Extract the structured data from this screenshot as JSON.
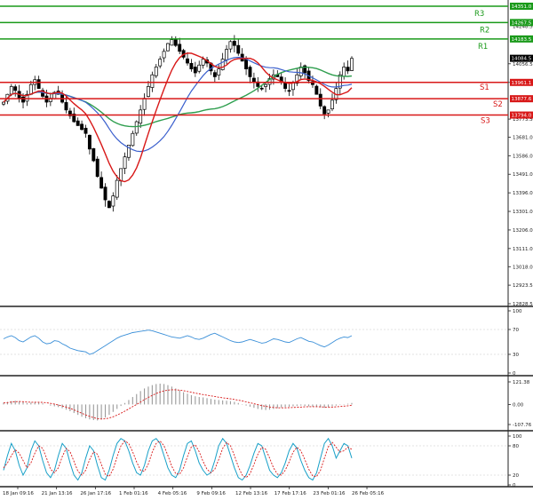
{
  "chart_data": {
    "type": "line",
    "main_panel": {
      "y_axis_ticks": [
        "14056.5",
        "13961.1",
        "13773.5",
        "13681.0",
        "13586.0",
        "13491.0",
        "13396.0",
        "13301.0",
        "13206.0",
        "13111.0",
        "13018.0",
        "12923.5",
        "12828.5"
      ],
      "y_range": [
        12828.5,
        14351.0
      ],
      "current_price": "14084.5",
      "levels": [
        {
          "label": "R3",
          "price": "14351.0",
          "value": 14351.0,
          "color": "#1a9a1a"
        },
        {
          "label": "R2",
          "price": "14267.5",
          "value": 14267.5,
          "color": "#1a9a1a"
        },
        {
          "label": "R1",
          "price": "14183.5",
          "value": 14183.5,
          "color": "#1a9a1a"
        },
        {
          "label": "S1",
          "price": "13961.1",
          "value": 13961.1,
          "color": "#d81818"
        },
        {
          "label": "S2",
          "price": "13877.6",
          "value": 13877.6,
          "color": "#d81818"
        },
        {
          "label": "S3",
          "price": "13794.0",
          "value": 13794.0,
          "color": "#d81818"
        }
      ],
      "extra_tick": "14248.5",
      "close": [
        13860,
        13900,
        13940,
        13920,
        13880,
        13860,
        13900,
        13950,
        13975,
        13930,
        13890,
        13860,
        13880,
        13910,
        13900,
        13860,
        13820,
        13790,
        13760,
        13740,
        13720,
        13700,
        13620,
        13560,
        13480,
        13420,
        13360,
        13320,
        13380,
        13460,
        13520,
        13580,
        13640,
        13700,
        13760,
        13820,
        13880,
        13940,
        14000,
        14040,
        14080,
        14120,
        14160,
        14180,
        14150,
        14120,
        14090,
        14060,
        14030,
        14010,
        14050,
        14080,
        14060,
        14020,
        13990,
        14030,
        14080,
        14130,
        14170,
        14150,
        14110,
        14070,
        14030,
        13990,
        13960,
        13940,
        13930,
        13950,
        13980,
        14000,
        13990,
        13960,
        13930,
        13920,
        13960,
        14000,
        14040,
        14010,
        13970,
        13950,
        13900,
        13840,
        13800,
        13820,
        13870,
        13930,
        14000,
        14040,
        14020,
        14084
      ]
    },
    "rsi_panel": {
      "y_ticks": [
        "100",
        "70",
        "30",
        "0"
      ],
      "values": [
        55,
        58,
        60,
        57,
        52,
        50,
        54,
        58,
        60,
        56,
        50,
        47,
        48,
        52,
        51,
        47,
        44,
        40,
        38,
        36,
        35,
        34,
        30,
        32,
        36,
        40,
        44,
        48,
        52,
        56,
        59,
        61,
        63,
        65,
        66,
        67,
        68,
        69,
        68,
        66,
        64,
        62,
        60,
        58,
        57,
        56,
        58,
        60,
        58,
        55,
        54,
        56,
        59,
        62,
        64,
        61,
        58,
        55,
        52,
        50,
        49,
        50,
        52,
        54,
        52,
        50,
        48,
        49,
        52,
        55,
        54,
        52,
        50,
        49,
        52,
        55,
        57,
        54,
        51,
        50,
        47,
        44,
        42,
        45,
        49,
        53,
        56,
        58,
        57,
        60
      ],
      "range": [
        0,
        100
      ]
    },
    "macd_panel": {
      "y_ticks": [
        "121.38",
        "0.00",
        "-107.76"
      ],
      "histogram": [
        10,
        14,
        18,
        20,
        17,
        12,
        8,
        10,
        14,
        12,
        6,
        0,
        -6,
        -10,
        -14,
        -20,
        -28,
        -36,
        -46,
        -56,
        -66,
        -74,
        -80,
        -84,
        -86,
        -80,
        -70,
        -56,
        -40,
        -24,
        -8,
        8,
        24,
        40,
        56,
        72,
        86,
        96,
        104,
        110,
        112,
        110,
        104,
        96,
        86,
        76,
        66,
        58,
        50,
        44,
        40,
        38,
        34,
        30,
        26,
        24,
        22,
        20,
        18,
        14,
        8,
        2,
        -6,
        -12,
        -18,
        -24,
        -28,
        -30,
        -28,
        -24,
        -20,
        -16,
        -14,
        -12,
        -10,
        -8,
        -6,
        -8,
        -10,
        -12,
        -14,
        -16,
        -18,
        -14,
        -10,
        -6,
        -2,
        2,
        4,
        8
      ],
      "signal": [
        8,
        10,
        13,
        15,
        16,
        15,
        13,
        12,
        12,
        12,
        11,
        9,
        6,
        2,
        -3,
        -8,
        -14,
        -21,
        -29,
        -38,
        -47,
        -56,
        -64,
        -71,
        -76,
        -78,
        -77,
        -73,
        -66,
        -57,
        -47,
        -36,
        -24,
        -12,
        0,
        13,
        26,
        38,
        49,
        59,
        67,
        73,
        77,
        79,
        79,
        77,
        74,
        70,
        66,
        61,
        57,
        53,
        50,
        46,
        43,
        39,
        36,
        33,
        30,
        27,
        23,
        19,
        14,
        9,
        4,
        -1,
        -6,
        -10,
        -14,
        -16,
        -18,
        -18,
        -18,
        -17,
        -16,
        -15,
        -14,
        -13,
        -12,
        -12,
        -12,
        -13,
        -14,
        -14,
        -14,
        -13,
        -11,
        -9,
        -7,
        -4
      ],
      "range": [
        -107.76,
        121.38
      ]
    },
    "stoch_panel": {
      "y_ticks": [
        "100",
        "80",
        "20",
        "0"
      ],
      "k": [
        30,
        60,
        85,
        70,
        40,
        20,
        35,
        70,
        90,
        80,
        50,
        25,
        15,
        30,
        60,
        85,
        75,
        45,
        20,
        10,
        25,
        55,
        80,
        70,
        40,
        15,
        10,
        30,
        60,
        85,
        95,
        90,
        70,
        45,
        25,
        20,
        40,
        70,
        90,
        95,
        85,
        60,
        35,
        20,
        15,
        30,
        60,
        85,
        90,
        70,
        45,
        30,
        20,
        25,
        50,
        80,
        95,
        85,
        60,
        35,
        15,
        10,
        20,
        40,
        65,
        85,
        80,
        55,
        30,
        20,
        15,
        25,
        45,
        70,
        85,
        75,
        50,
        30,
        15,
        10,
        25,
        55,
        85,
        95,
        80,
        55,
        70,
        85,
        80,
        55
      ],
      "d": [
        35,
        45,
        60,
        72,
        65,
        50,
        35,
        45,
        65,
        80,
        75,
        55,
        32,
        25,
        35,
        58,
        75,
        68,
        48,
        28,
        20,
        30,
        52,
        68,
        63,
        42,
        22,
        17,
        32,
        57,
        80,
        90,
        85,
        68,
        47,
        30,
        28,
        43,
        67,
        85,
        90,
        80,
        60,
        38,
        23,
        22,
        35,
        58,
        78,
        82,
        68,
        48,
        32,
        25,
        32,
        52,
        75,
        87,
        80,
        60,
        37,
        20,
        15,
        23,
        42,
        63,
        77,
        73,
        55,
        35,
        22,
        20,
        30,
        47,
        67,
        77,
        70,
        52,
        32,
        18,
        17,
        30,
        55,
        78,
        87,
        77,
        67,
        70,
        77,
        73
      ],
      "range": [
        0,
        100
      ]
    },
    "x_tick_labels": [
      "18 Jan 09:16",
      "21 Jan 13:16",
      "26 Jan 17:16",
      "1 Feb 01:16",
      "4 Feb 05:16",
      "9 Feb 09:16",
      "12 Feb 13:16",
      "17 Feb 17:16",
      "23 Feb 01:16",
      "26 Feb 05:16"
    ]
  },
  "colors": {
    "bull": "#1a9a1a",
    "bear": "#d81818",
    "candle": "#000000",
    "ma_fast": "#d81818",
    "ma_mid": "#3a5fcd",
    "ma_slow": "#2e9e4e",
    "rsi": "#3a8fd8",
    "hist": "#9a9a9a",
    "dashed": "#d81818",
    "stoch_k": "#18a0c8"
  }
}
